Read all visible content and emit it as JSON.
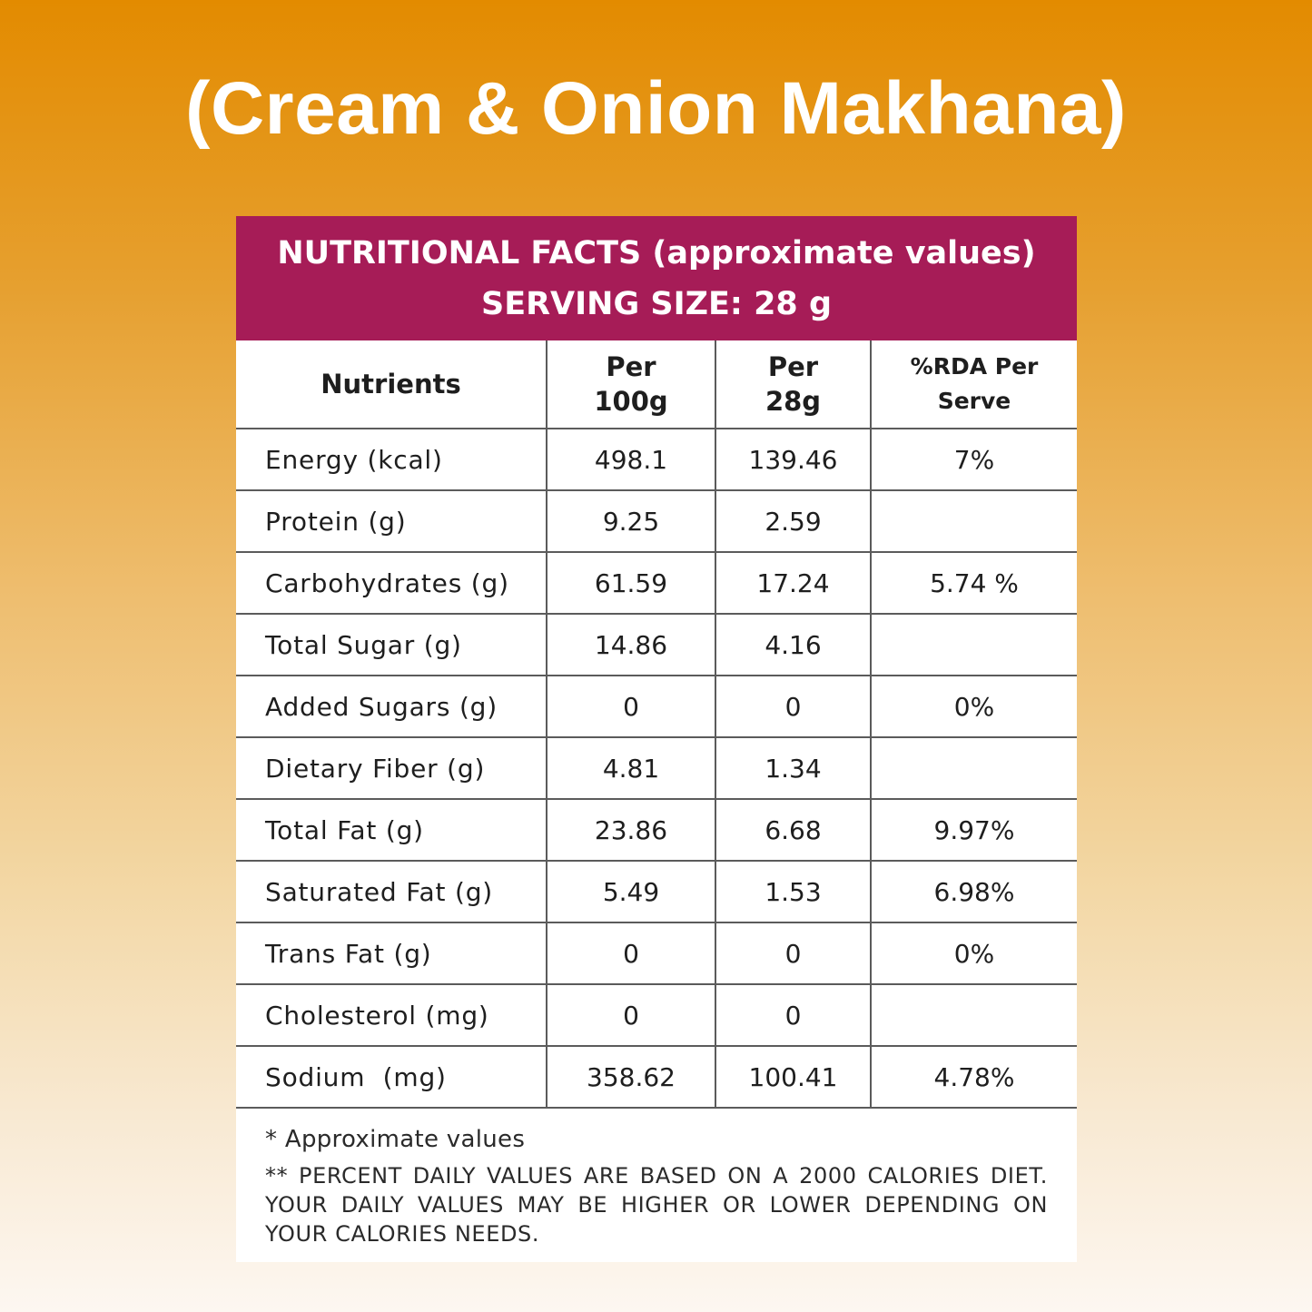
{
  "title": "(Cream & Onion Makhana)",
  "header": {
    "line1": "NUTRITIONAL FACTS (approximate values)",
    "line2": "SERVING SIZE: 28 g"
  },
  "columns": {
    "nutrients": "Nutrients",
    "per100_line1": "Per",
    "per100_line2": "100g",
    "per28_line1": "Per",
    "per28_line2": "28g",
    "rda": "%RDA Per Serve"
  },
  "rows": [
    {
      "name": "Energy (kcal)",
      "per100": "498.1",
      "per28": "139.46",
      "rda": "7%"
    },
    {
      "name": "Protein (g)",
      "per100": "9.25",
      "per28": "2.59",
      "rda": ""
    },
    {
      "name": "Carbohydrates (g)",
      "per100": "61.59",
      "per28": "17.24",
      "rda": "5.74 %"
    },
    {
      "name": "Total Sugar (g)",
      "per100": "14.86",
      "per28": "4.16",
      "rda": ""
    },
    {
      "name": "Added Sugars (g)",
      "per100": "0",
      "per28": "0",
      "rda": "0%"
    },
    {
      "name": "Dietary Fiber (g)",
      "per100": "4.81",
      "per28": "1.34",
      "rda": ""
    },
    {
      "name": "Total Fat (g)",
      "per100": "23.86",
      "per28": "6.68",
      "rda": "9.97%"
    },
    {
      "name": "Saturated Fat (g)",
      "per100": "5.49",
      "per28": "1.53",
      "rda": "6.98%"
    },
    {
      "name": "Trans Fat (g)",
      "per100": "0",
      "per28": "0",
      "rda": "0%"
    },
    {
      "name": "Cholesterol (mg)",
      "per100": "0",
      "per28": "0",
      "rda": ""
    },
    {
      "name": "Sodium  (mg)",
      "per100": "358.62",
      "per28": "100.41",
      "rda": "4.78%"
    }
  ],
  "notes": {
    "note1": "* Approximate values",
    "note2": "** PERCENT DAILY VALUES ARE BASED ON A 2000 CALORIES DIET. YOUR DAILY VALUES MAY BE HIGHER OR LOWER DEPENDING ON YOUR CALORIES NEEDS."
  },
  "colors": {
    "header_bg": "#a61c57",
    "gradient_top": "#e38b00",
    "gradient_bottom": "#fdf7f1"
  }
}
